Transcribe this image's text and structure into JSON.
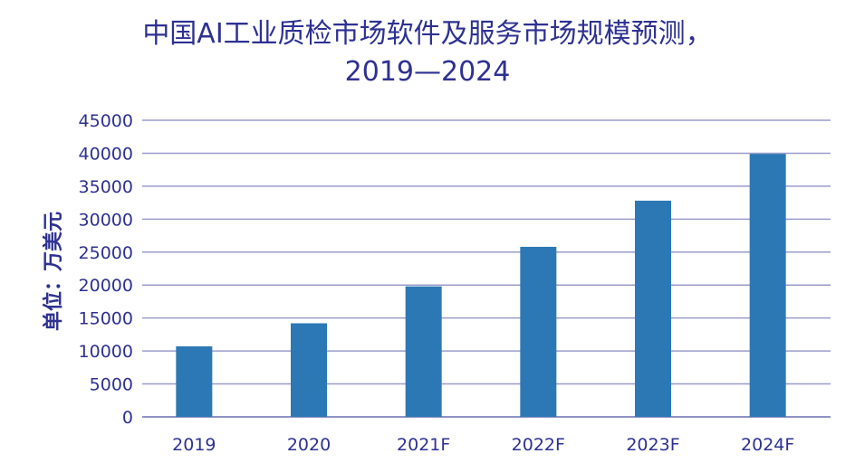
{
  "chart_data": {
    "type": "bar",
    "title_line1": "中国AI工业质检市场软件及服务市场规模预测，",
    "title_line2": "2019—2024",
    "ylabel": "单位：万美元",
    "xlabel": "",
    "categories": [
      "2019",
      "2020",
      "2021F",
      "2022F",
      "2023F",
      "2024F"
    ],
    "values": [
      10700,
      14200,
      19800,
      25800,
      32800,
      39900
    ],
    "ylim": [
      0,
      45000
    ],
    "yticks": [
      0,
      5000,
      10000,
      15000,
      20000,
      25000,
      30000,
      35000,
      40000,
      45000
    ],
    "grid": true,
    "colors": {
      "bar": "#2c78b4",
      "grid": "#9a9ccb",
      "text": "#2e3192"
    }
  }
}
